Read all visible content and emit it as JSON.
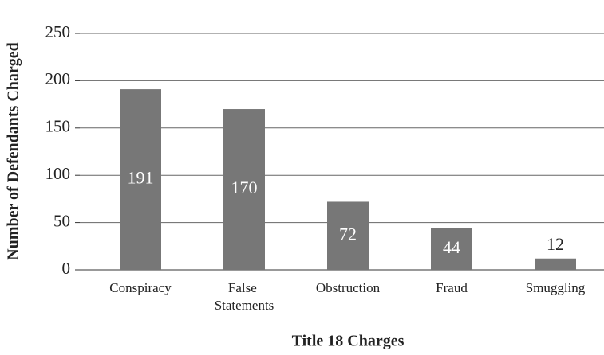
{
  "chart_data": {
    "type": "bar",
    "x_label": "Title 18 Charges",
    "y_label": "Number of Defendants Charged",
    "categories": [
      "Conspiracy",
      "False Statements",
      "Obstruction",
      "Fraud",
      "Smuggling"
    ],
    "values": [
      191,
      170,
      72,
      44,
      12
    ],
    "color": "#777777",
    "ylim": [
      0,
      250
    ],
    "yticks": [
      0,
      50,
      100,
      150,
      200,
      250
    ],
    "grid": true
  }
}
